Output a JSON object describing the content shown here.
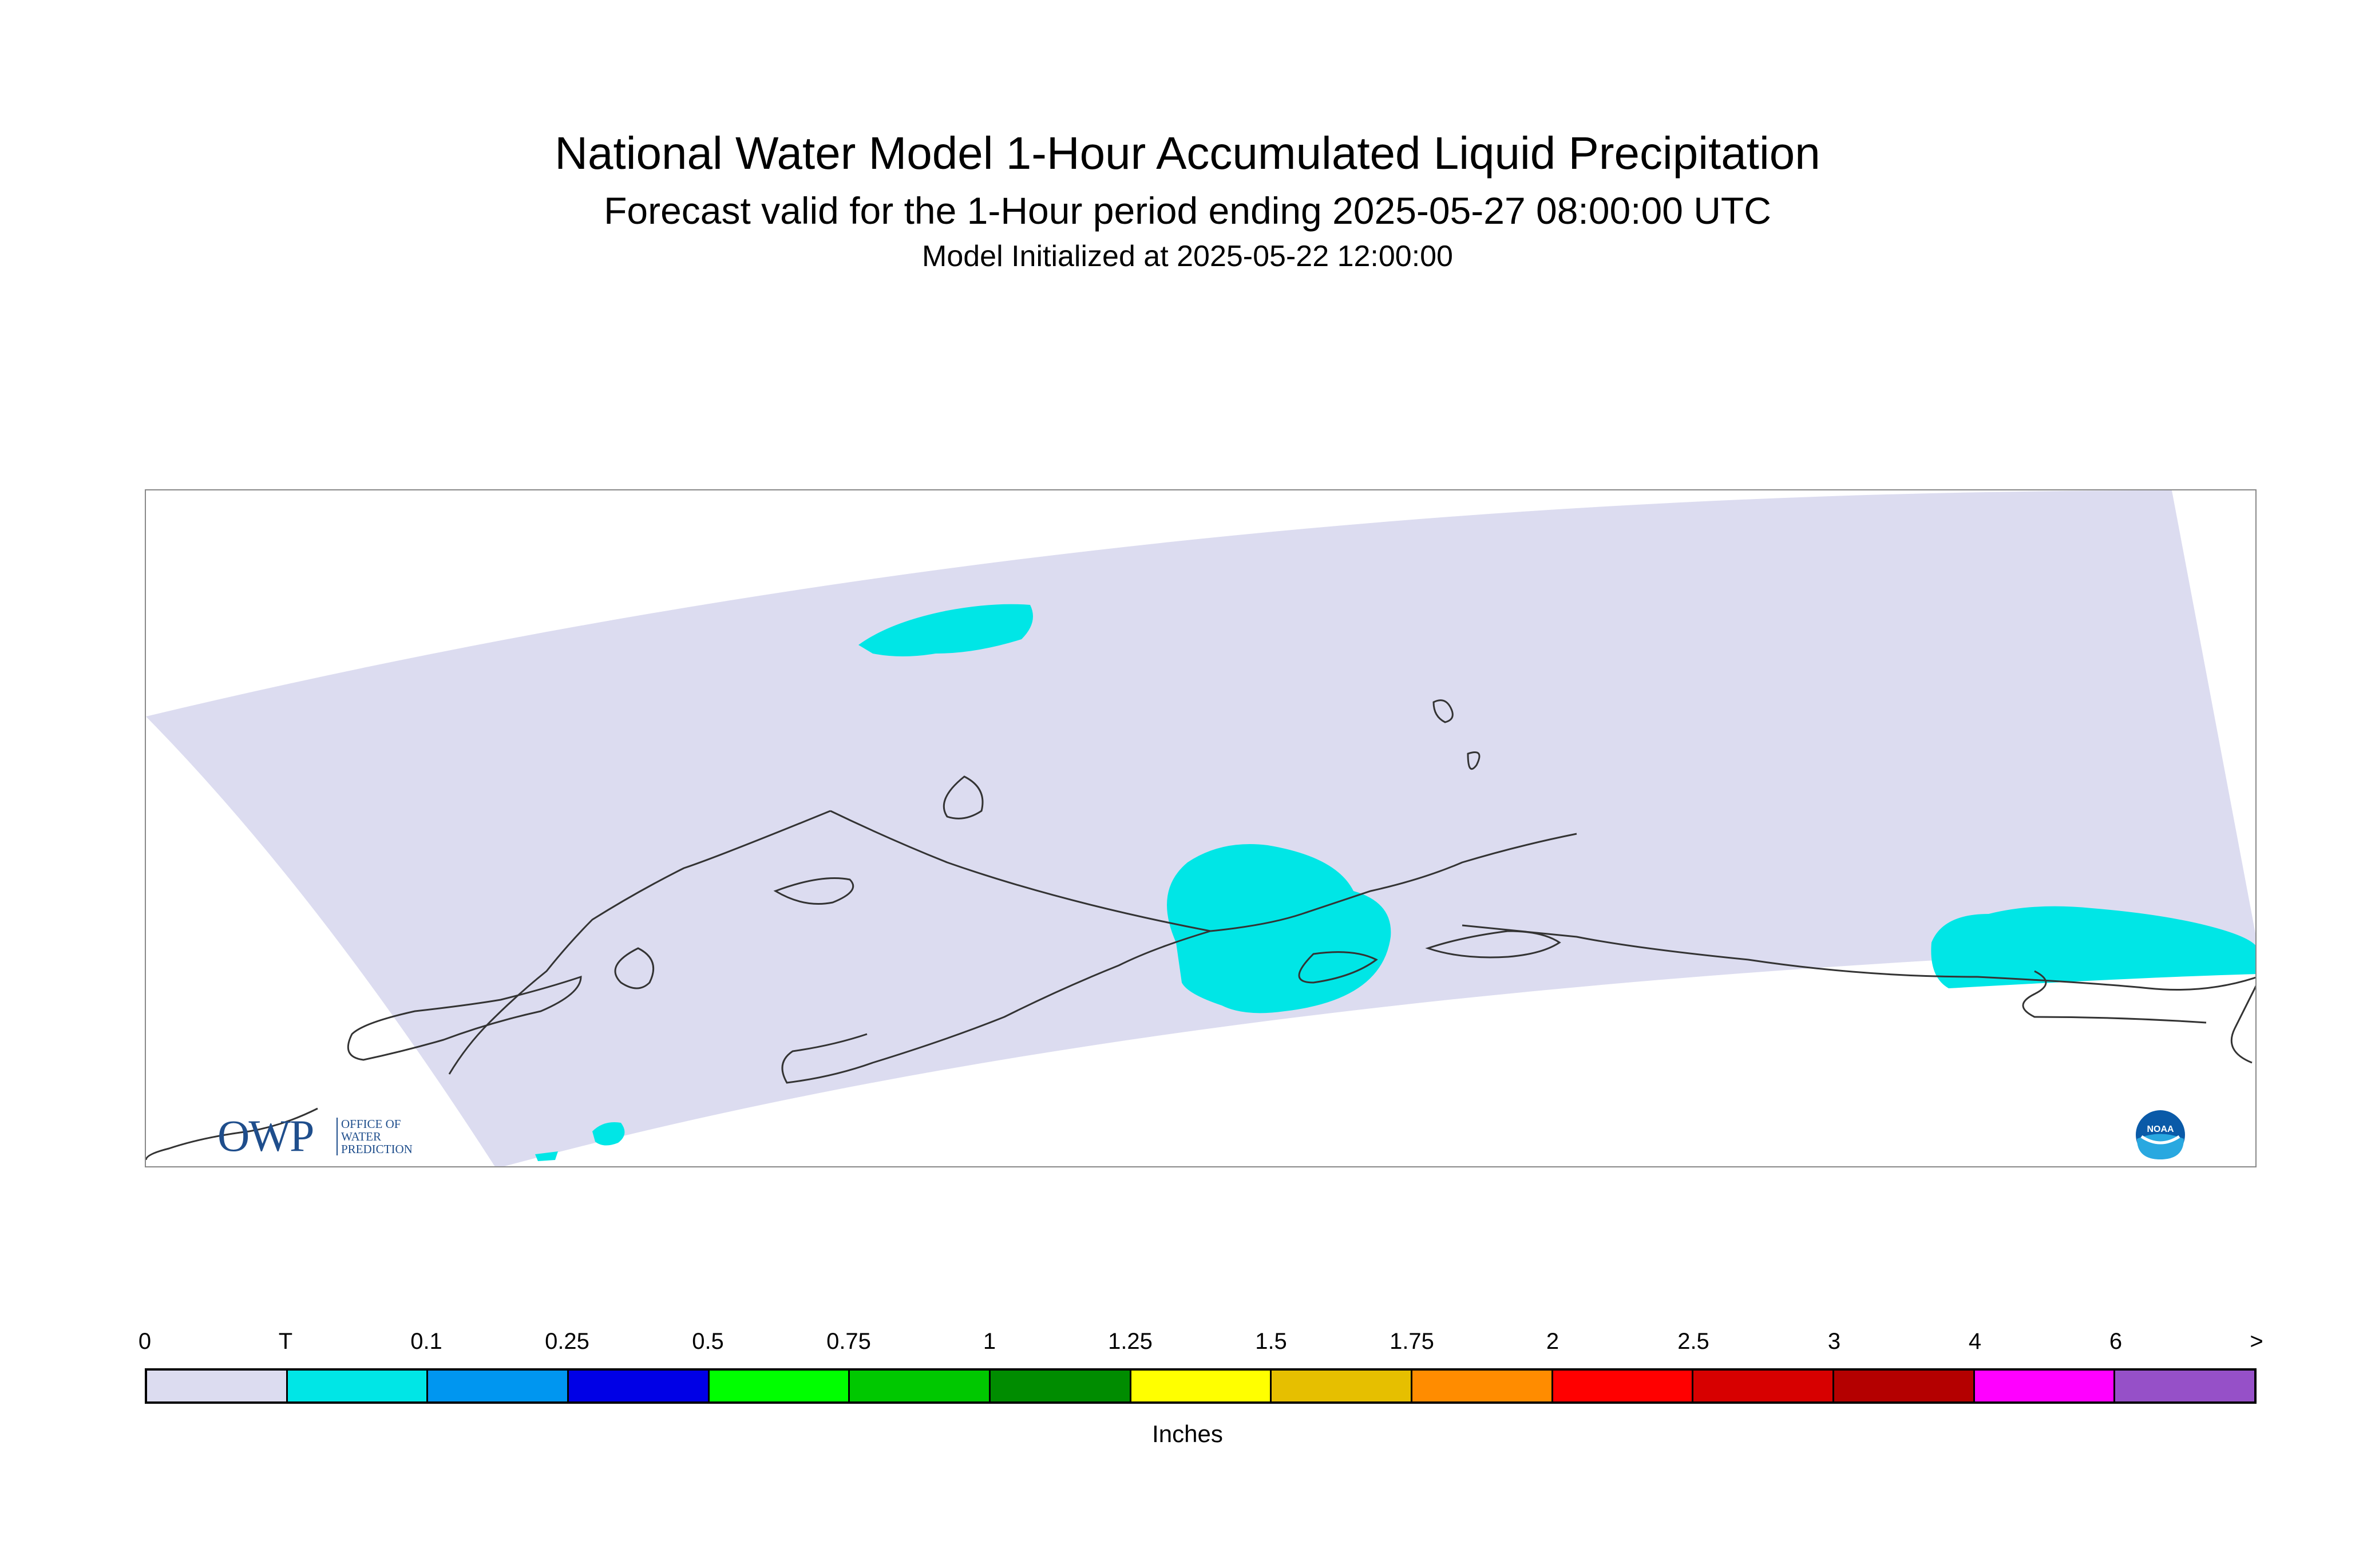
{
  "header": {
    "title": "National Water Model 1-Hour Accumulated Liquid Precipitation",
    "subtitle": "Forecast valid for the 1-Hour period ending 2025-05-27 08:00:00 UTC",
    "init_line": "Model Initialized at 2025-05-22 12:00:00"
  },
  "logos": {
    "owp_big": "OWP",
    "owp_line1": "OFFICE OF",
    "owp_line2": "WATER",
    "owp_line3": "PREDICTION",
    "noaa_text": "NOAA"
  },
  "legend": {
    "units": "Inches",
    "tick_labels": [
      "0",
      "T",
      "0.1",
      "0.25",
      "0.5",
      "0.75",
      "1",
      "1.25",
      "1.5",
      "1.75",
      "2",
      "2.5",
      "3",
      "4",
      "6",
      ">"
    ],
    "colors": [
      "#dcdcf0",
      "#00e6e6",
      "#0096f0",
      "#0000e6",
      "#00ff00",
      "#00c800",
      "#008c00",
      "#ffff00",
      "#e6bf00",
      "#ff8c00",
      "#ff0000",
      "#d70000",
      "#b40000",
      "#ff00ff",
      "#9650c8"
    ]
  },
  "map": {
    "domain_fill": "#dcdcf0",
    "trace_color": "#00e6e6",
    "coast_color": "#333333"
  }
}
